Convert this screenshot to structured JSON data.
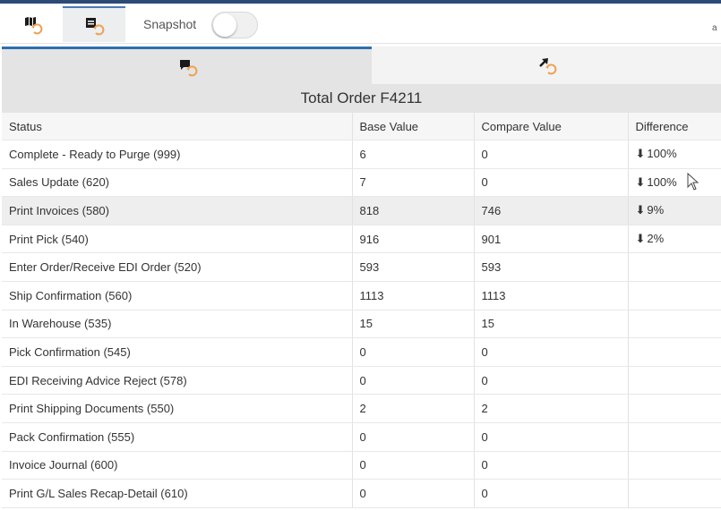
{
  "toolbar": {
    "snapshot_label": "Snapshot",
    "snapshot_on": false,
    "right_edge_text": "a",
    "buttons": [
      {
        "name": "map-sync-icon",
        "active": false
      },
      {
        "name": "table-sync-icon",
        "active": true
      }
    ]
  },
  "tabs": [
    {
      "icon": "comment-sync-icon",
      "active": true
    },
    {
      "icon": "arrow-sync-icon",
      "active": false
    }
  ],
  "title": "Total Order F4211",
  "table": {
    "headers": [
      "Status",
      "Base Value",
      "Compare Value",
      "Difference"
    ],
    "rows": [
      {
        "status": "Complete - Ready to Purge (999)",
        "base": "6",
        "compare": "0",
        "difference": "100%",
        "arrow": "down"
      },
      {
        "status": "Sales Update (620)",
        "base": "7",
        "compare": "0",
        "difference": "100%",
        "arrow": "down"
      },
      {
        "status": "Print Invoices (580)",
        "base": "818",
        "compare": "746",
        "difference": "9%",
        "arrow": "down",
        "highlight": true
      },
      {
        "status": "Print Pick (540)",
        "base": "916",
        "compare": "901",
        "difference": "2%",
        "arrow": "down"
      },
      {
        "status": "Enter Order/Receive EDI Order (520)",
        "base": "593",
        "compare": "593",
        "difference": ""
      },
      {
        "status": "Ship Confirmation (560)",
        "base": "1113",
        "compare": "1113",
        "difference": ""
      },
      {
        "status": "In Warehouse (535)",
        "base": "15",
        "compare": "15",
        "difference": ""
      },
      {
        "status": "Pick Confirmation (545)",
        "base": "0",
        "compare": "0",
        "difference": ""
      },
      {
        "status": "EDI Receiving Advice Reject (578)",
        "base": "0",
        "compare": "0",
        "difference": ""
      },
      {
        "status": "Print Shipping Documents (550)",
        "base": "2",
        "compare": "2",
        "difference": ""
      },
      {
        "status": "Pack Confirmation (555)",
        "base": "0",
        "compare": "0",
        "difference": ""
      },
      {
        "status": "Invoice Journal (600)",
        "base": "0",
        "compare": "0",
        "difference": ""
      },
      {
        "status": "Print G/L Sales Recap-Detail (610)",
        "base": "0",
        "compare": "0",
        "difference": ""
      }
    ]
  },
  "colors": {
    "accent": "#2d6fb0",
    "icon_dark": "#1a1a1a",
    "icon_orange": "#f0a050"
  }
}
